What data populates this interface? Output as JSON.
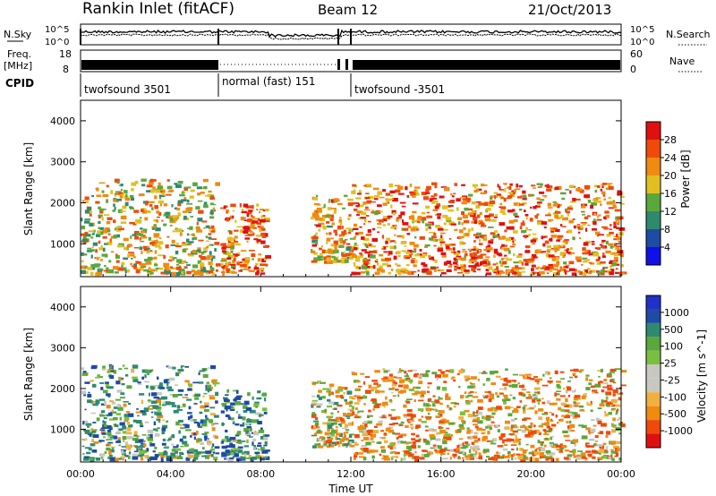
{
  "header": {
    "station": "Rankin Inlet (fitACF)",
    "beam": "Beam 12",
    "date": "21/Oct/2013"
  },
  "noise_panel": {
    "left_label": "N.Sky",
    "right_label": "N.Search",
    "left_ticks": [
      "10^5",
      "10^0"
    ],
    "right_ticks": [
      "10^5",
      "10^0"
    ]
  },
  "freq_panel": {
    "left_label_1": "Freq.",
    "left_label_2": "[MHz]",
    "right_label": "Nave",
    "left_ticks": [
      "18",
      "8"
    ],
    "right_ticks": [
      "60",
      "0"
    ]
  },
  "cpid_panel": {
    "label": "CPID",
    "segments": [
      {
        "name": "twofsound 3501",
        "start_hour": 0,
        "end_hour": 6
      },
      {
        "name": "normal (fast) 151",
        "start_hour": 6,
        "end_hour": 12
      },
      {
        "name": "twofsound -3501",
        "start_hour": 12,
        "end_hour": 24
      }
    ]
  },
  "colors": {
    "power": [
      "#1010e8",
      "#1f4aa6",
      "#2e8a6e",
      "#5aa83c",
      "#e0c020",
      "#f08a10",
      "#f04a0a",
      "#e01010"
    ],
    "velocity": [
      "#e01010",
      "#f04a0a",
      "#f08a10",
      "#f0b040",
      "#c8c8c0",
      "#c8c8c0",
      "#7ac040",
      "#5aa83c",
      "#2e8a6e",
      "#1f4aa6",
      "#2030c8"
    ]
  },
  "chart_data": [
    {
      "type": "heatmap",
      "panel": "power",
      "xlabel": "",
      "ylabel": "Slant Range [km]",
      "x_range_hours": [
        0,
        24
      ],
      "ylim": [
        200,
        4500
      ],
      "y_ticks": [
        1000,
        2000,
        3000,
        4000
      ],
      "colorbar_label": "Power [dB]",
      "colorbar_ticks": [
        4,
        8,
        12,
        16,
        20,
        24,
        28
      ],
      "colorbar_range": [
        0,
        32
      ],
      "echo_regions": [
        {
          "t0": 0.0,
          "t1": 6.0,
          "r0": 300,
          "r1": 2600,
          "level": 20
        },
        {
          "t0": 6.2,
          "t1": 8.2,
          "r0": 300,
          "r1": 2000,
          "level": 26
        },
        {
          "t0": 10.2,
          "t1": 12.0,
          "r0": 600,
          "r1": 2200,
          "level": 22
        },
        {
          "t0": 12.0,
          "t1": 24.0,
          "r0": 300,
          "r1": 2500,
          "level": 26
        }
      ]
    },
    {
      "type": "heatmap",
      "panel": "velocity",
      "xlabel": "Time UT",
      "ylabel": "Slant Range [km]",
      "x_range_hours": [
        0,
        24
      ],
      "x_tick_labels": [
        "00:00",
        "04:00",
        "08:00",
        "12:00",
        "16:00",
        "20:00",
        "00:00"
      ],
      "ylim": [
        200,
        4500
      ],
      "y_ticks": [
        1000,
        2000,
        3000,
        4000
      ],
      "colorbar_label": "Velocity [m s^-1]",
      "colorbar_ticks": [
        "1000",
        "500",
        "100",
        "25",
        "-25",
        "-100",
        "-500",
        "-1000"
      ],
      "echo_regions": [
        {
          "t0": 0.0,
          "t1": 6.0,
          "r0": 300,
          "r1": 2600,
          "level": 150
        },
        {
          "t0": 6.2,
          "t1": 8.2,
          "r0": 300,
          "r1": 2000,
          "level": 200
        },
        {
          "t0": 10.2,
          "t1": 12.0,
          "r0": 600,
          "r1": 2200,
          "level": 0
        },
        {
          "t0": 12.0,
          "t1": 24.0,
          "r0": 300,
          "r1": 2500,
          "level": -100
        }
      ]
    }
  ]
}
